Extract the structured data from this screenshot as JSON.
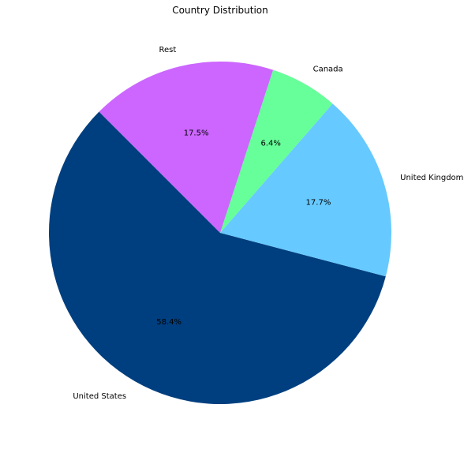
{
  "chart_data": {
    "type": "pie",
    "title": "Country Distribution",
    "start_angle_deg": 135,
    "direction": "counterclockwise",
    "slices": [
      {
        "label": "United States",
        "value": 58.4,
        "pct_text": "58.4%",
        "color": "#003f7f"
      },
      {
        "label": "United Kingdom",
        "value": 17.7,
        "pct_text": "17.7%",
        "color": "#66c9ff"
      },
      {
        "label": "Canada",
        "value": 6.4,
        "pct_text": "6.4%",
        "color": "#66ff99"
      },
      {
        "label": "Rest",
        "value": 17.5,
        "pct_text": "17.5%",
        "color": "#cc66ff"
      }
    ]
  }
}
